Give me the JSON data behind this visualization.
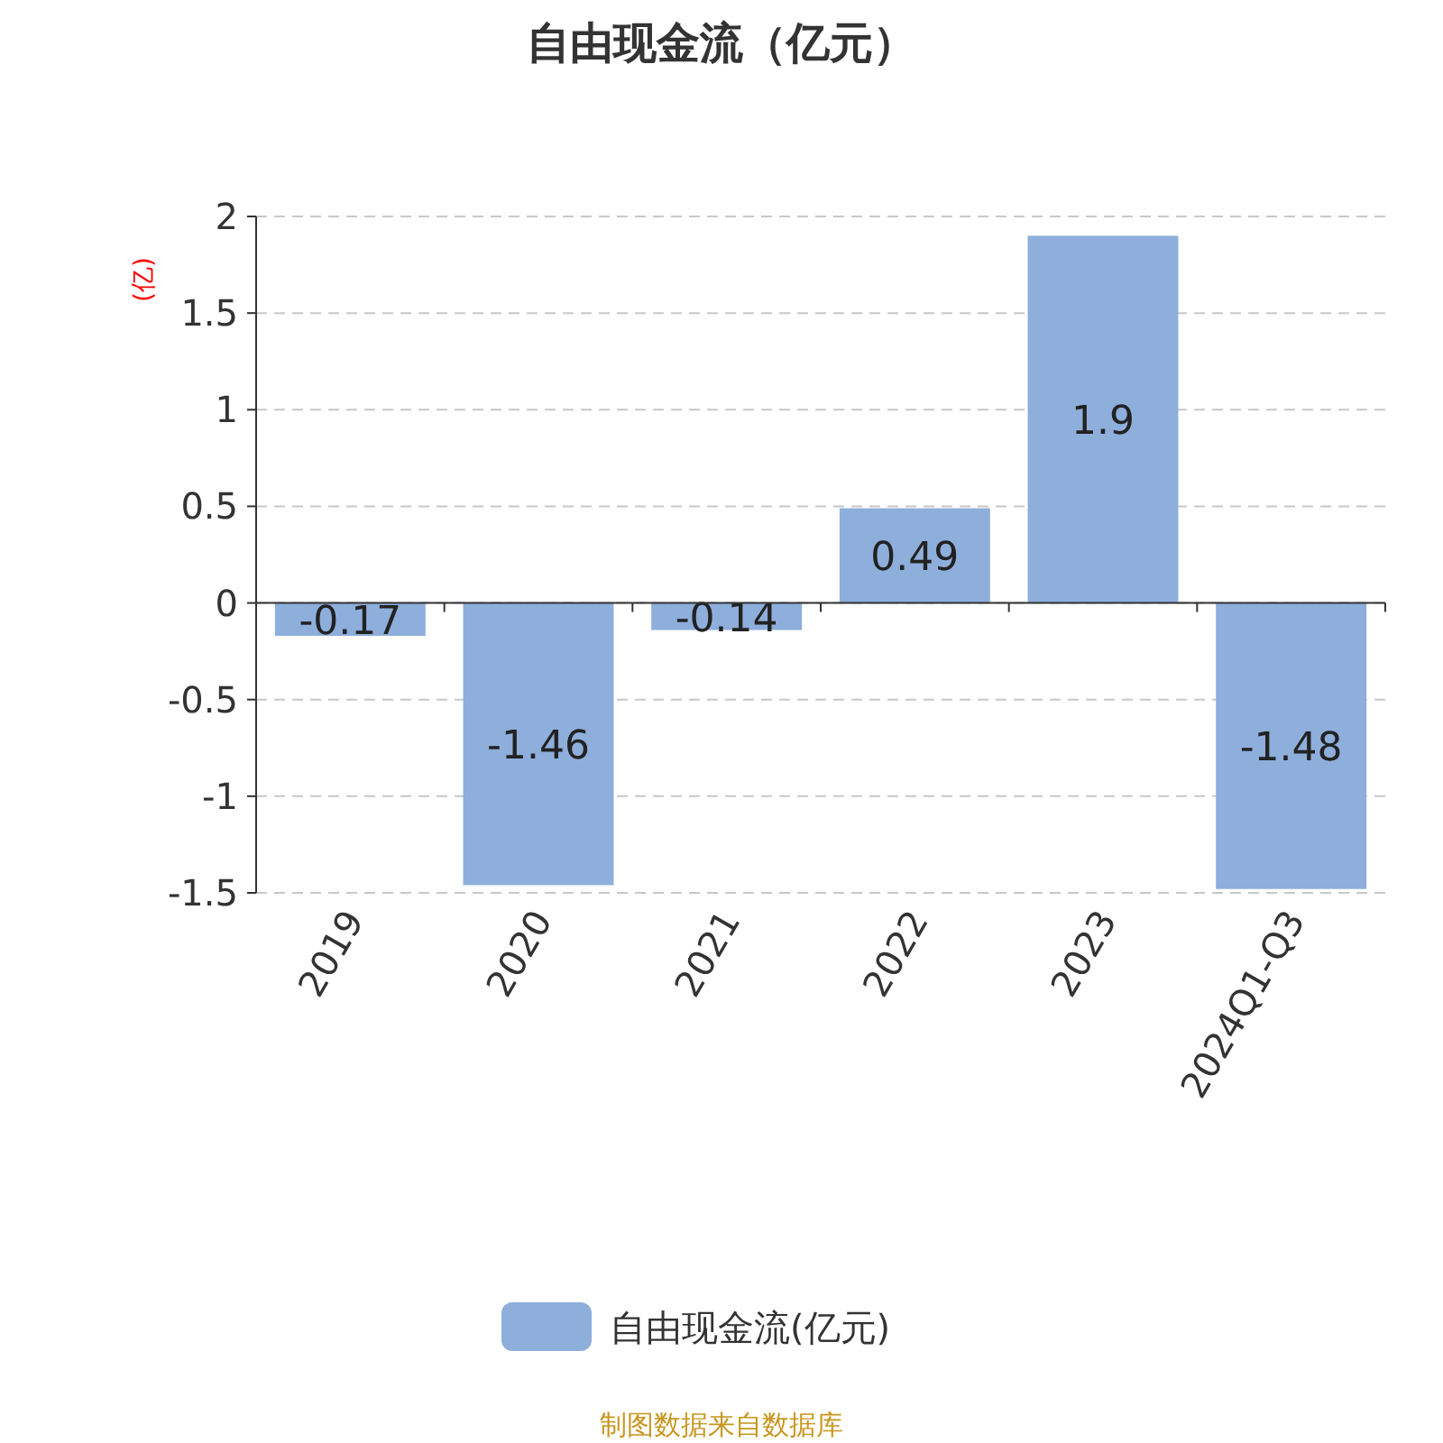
{
  "chart_data": {
    "type": "bar",
    "title": "自由现金流（亿元）",
    "ylabel": "(亿)",
    "categories": [
      "2019",
      "2020",
      "2021",
      "2022",
      "2023",
      "2024Q1-Q3"
    ],
    "series": [
      {
        "name": "自由现金流(亿元)",
        "color": "#8eaedb",
        "values": [
          -0.17,
          -1.46,
          -0.14,
          0.49,
          1.9,
          -1.48
        ]
      }
    ],
    "ylim": [
      -1.5,
      2
    ],
    "yticks": [
      -1.5,
      -1,
      -0.5,
      0,
      0.5,
      1,
      1.5,
      2
    ],
    "grid": "y",
    "legend": "bottom",
    "data_labels": true,
    "annotations": [
      "制图数据来自数据库"
    ]
  }
}
